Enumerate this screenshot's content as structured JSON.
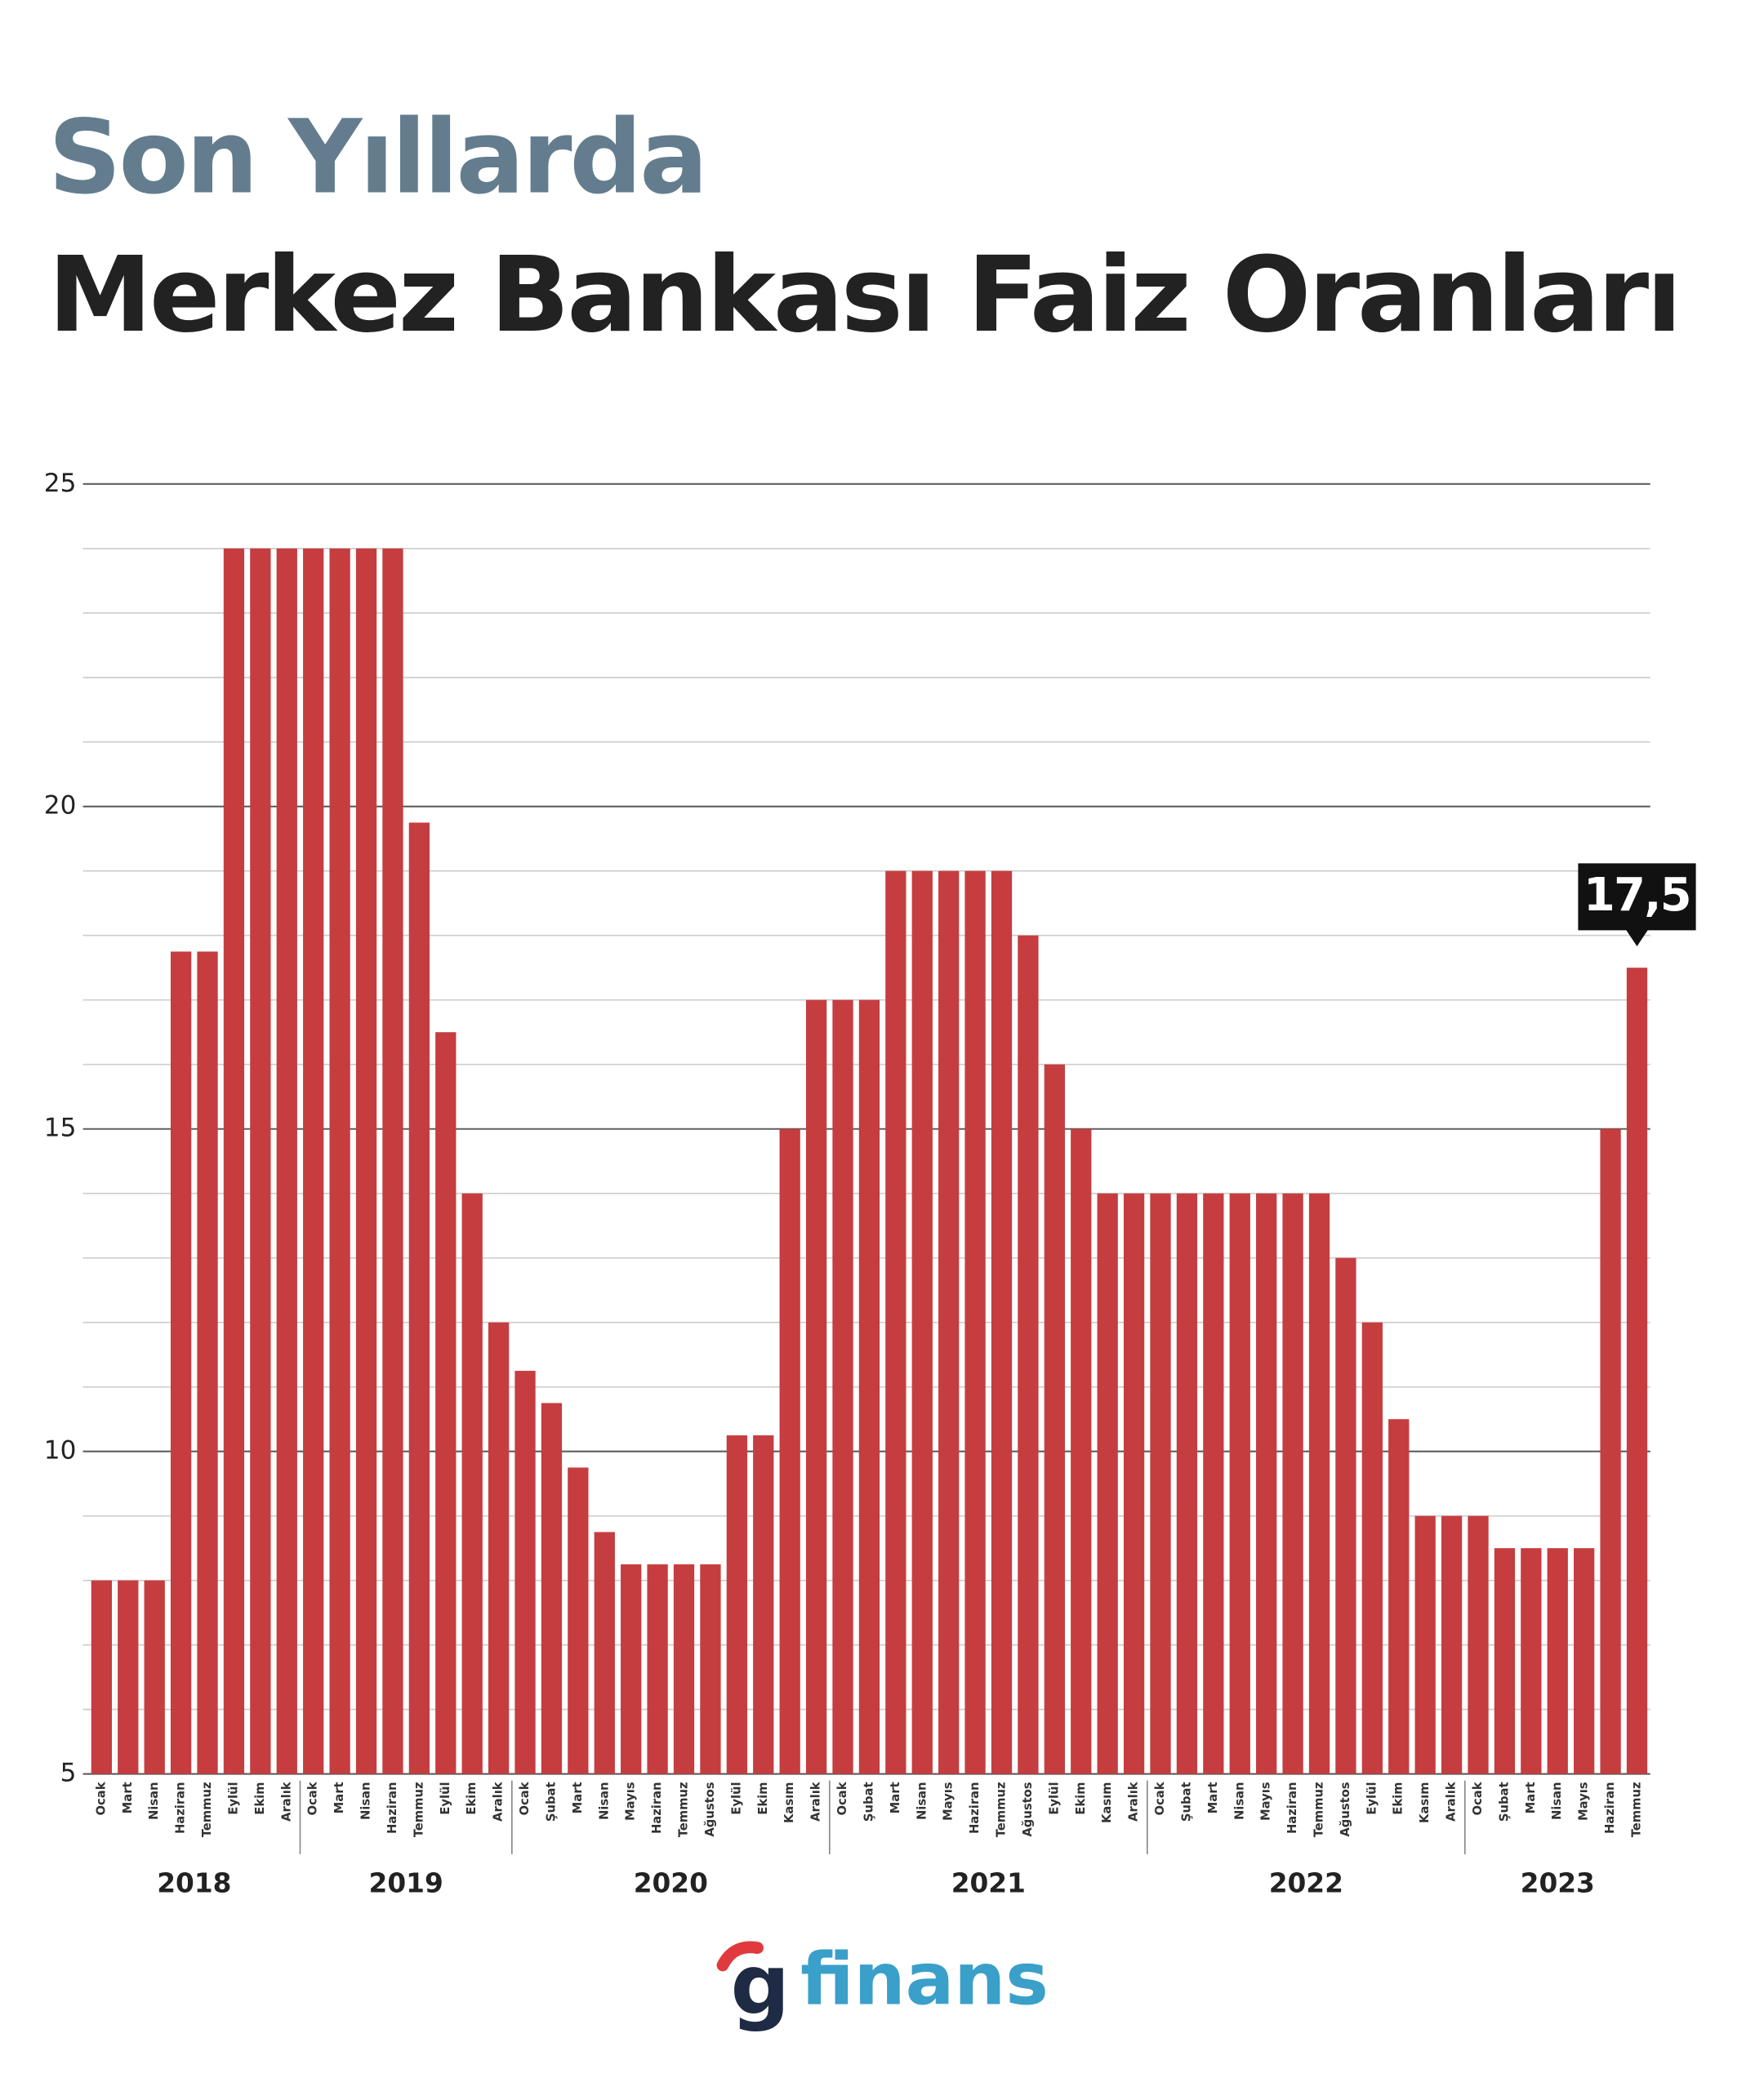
{
  "chart_data": {
    "type": "bar",
    "title": "Son Yıllarda",
    "subtitle": "Merkez Bankası Faiz Oranları",
    "categories": [
      "Ocak",
      "Mart",
      "Nisan",
      "Haziran",
      "Temmuz",
      "Eylül",
      "Ekim",
      "Aralık",
      "Ocak",
      "Mart",
      "Nisan",
      "Haziran",
      "Temmuz",
      "Eylül",
      "Ekim",
      "Aralık",
      "Ocak",
      "Şubat",
      "Mart",
      "Nisan",
      "Mayıs",
      "Haziran",
      "Temmuz",
      "Ağustos",
      "Eylül",
      "Ekim",
      "Kasım",
      "Aralık",
      "Ocak",
      "Şubat",
      "Mart",
      "Nisan",
      "Mayıs",
      "Haziran",
      "Temmuz",
      "Ağustos",
      "Eylül",
      "Ekim",
      "Kasım",
      "Aralık",
      "Ocak",
      "Şubat",
      "Mart",
      "Nisan",
      "Mayıs",
      "Haziran",
      "Temmuz",
      "Ağustos",
      "Eylül",
      "Ekim",
      "Kasım",
      "Aralık",
      "Ocak",
      "Şubat",
      "Mart",
      "Nisan",
      "Mayıs",
      "Haziran",
      "Temmuz"
    ],
    "category_years": [
      "2018",
      "2018",
      "2018",
      "2018",
      "2018",
      "2018",
      "2018",
      "2018",
      "2019",
      "2019",
      "2019",
      "2019",
      "2019",
      "2019",
      "2019",
      "2019",
      "2020",
      "2020",
      "2020",
      "2020",
      "2020",
      "2020",
      "2020",
      "2020",
      "2020",
      "2020",
      "2020",
      "2020",
      "2021",
      "2021",
      "2021",
      "2021",
      "2021",
      "2021",
      "2021",
      "2021",
      "2021",
      "2021",
      "2021",
      "2021",
      "2022",
      "2022",
      "2022",
      "2022",
      "2022",
      "2022",
      "2022",
      "2022",
      "2022",
      "2022",
      "2022",
      "2022",
      "2023",
      "2023",
      "2023",
      "2023",
      "2023",
      "2023",
      "2023"
    ],
    "values": [
      8,
      8,
      8,
      17.75,
      17.75,
      24,
      24,
      24,
      24,
      24,
      24,
      24,
      19.75,
      16.5,
      14,
      12,
      11.25,
      10.75,
      9.75,
      8.75,
      8.25,
      8.25,
      8.25,
      8.25,
      10.25,
      10.25,
      15,
      17,
      17,
      17,
      19,
      19,
      19,
      19,
      19,
      18,
      16,
      15,
      14,
      14,
      14,
      14,
      14,
      14,
      14,
      14,
      14,
      13,
      12,
      10.5,
      9,
      9,
      9,
      8.5,
      8.5,
      8.5,
      8.5,
      15,
      17.5
    ],
    "value_labels": [
      null,
      null,
      null,
      null,
      null,
      null,
      null,
      null,
      null,
      null,
      null,
      null,
      null,
      null,
      null,
      null,
      null,
      null,
      null,
      null,
      null,
      null,
      null,
      null,
      null,
      null,
      null,
      null,
      null,
      null,
      null,
      null,
      null,
      null,
      null,
      null,
      null,
      null,
      null,
      null,
      null,
      null,
      null,
      null,
      null,
      null,
      null,
      null,
      null,
      null,
      null,
      null,
      null,
      null,
      null,
      null,
      null,
      null,
      "17,5"
    ],
    "color": "#c63d3f",
    "ylim": [
      5,
      25
    ],
    "yticks": [
      5,
      10,
      15,
      20,
      25
    ],
    "minor_yticks": [
      6,
      7,
      8,
      9,
      11,
      12,
      13,
      14,
      16,
      17,
      18,
      19,
      21,
      22,
      23,
      24
    ],
    "grid": true,
    "logo": {
      "mark": "g",
      "text": "finans"
    }
  }
}
